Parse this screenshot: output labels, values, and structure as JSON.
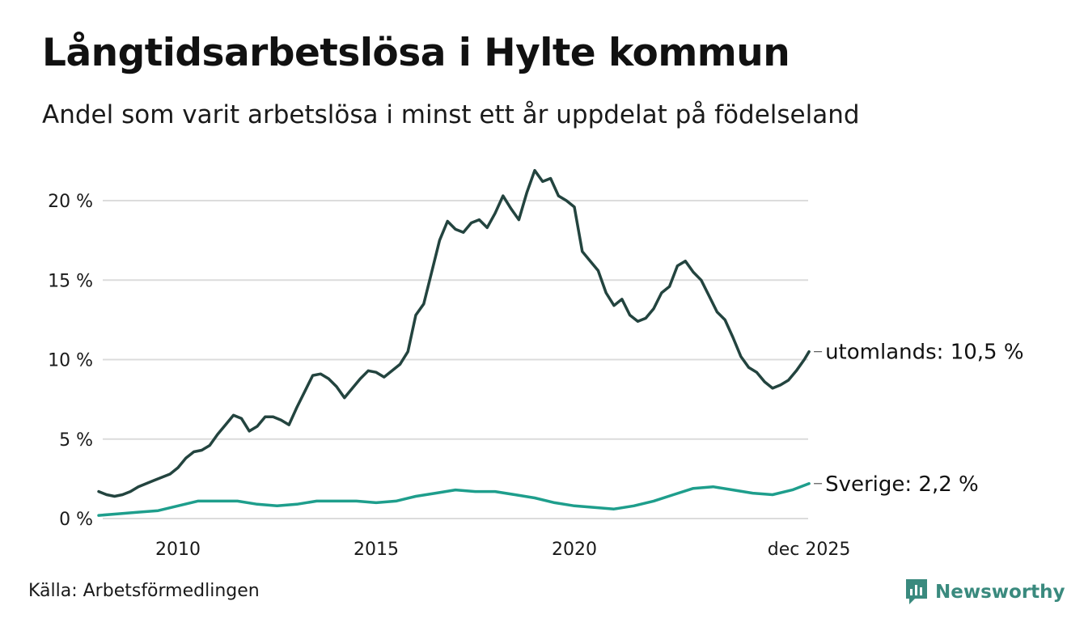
{
  "header": {
    "title": "Långtidsarbetslösa i Hylte kommun",
    "subtitle": "Andel som varit arbetslösa i minst ett år uppdelat på födelseland"
  },
  "footer": {
    "source": "Källa: Arbetsförmedlingen",
    "brand": "Newsworthy",
    "brand_color": "#3a8a7e"
  },
  "chart_data": {
    "type": "line",
    "title": "Långtidsarbetslösa i Hylte kommun",
    "subtitle": "Andel som varit arbetslösa i minst ett år uppdelat på födelseland",
    "xlabel": "",
    "ylabel": "",
    "xlim": [
      2008.0,
      2025.92
    ],
    "ylim": [
      0,
      22
    ],
    "grid": true,
    "y_ticks": [
      {
        "value": 0,
        "label": "0 %"
      },
      {
        "value": 5,
        "label": "5 %"
      },
      {
        "value": 10,
        "label": "10 %"
      },
      {
        "value": 15,
        "label": "15 %"
      },
      {
        "value": 20,
        "label": "20 %"
      }
    ],
    "x_ticks": [
      {
        "value": 2010,
        "label": "2010"
      },
      {
        "value": 2015,
        "label": "2015"
      },
      {
        "value": 2020,
        "label": "2020"
      },
      {
        "value": 2025.92,
        "label": "dec 2025"
      }
    ],
    "series": [
      {
        "name": "utomlands",
        "end_label": "utomlands: 10,5 %",
        "color": "#23443f",
        "points": [
          [
            2008.0,
            1.7
          ],
          [
            2008.2,
            1.5
          ],
          [
            2008.4,
            1.4
          ],
          [
            2008.6,
            1.5
          ],
          [
            2008.8,
            1.7
          ],
          [
            2009.0,
            2.0
          ],
          [
            2009.2,
            2.2
          ],
          [
            2009.4,
            2.4
          ],
          [
            2009.6,
            2.6
          ],
          [
            2009.8,
            2.8
          ],
          [
            2010.0,
            3.2
          ],
          [
            2010.2,
            3.8
          ],
          [
            2010.4,
            4.2
          ],
          [
            2010.6,
            4.3
          ],
          [
            2010.8,
            4.6
          ],
          [
            2011.0,
            5.3
          ],
          [
            2011.2,
            5.9
          ],
          [
            2011.4,
            6.5
          ],
          [
            2011.6,
            6.3
          ],
          [
            2011.8,
            5.5
          ],
          [
            2012.0,
            5.8
          ],
          [
            2012.2,
            6.4
          ],
          [
            2012.4,
            6.4
          ],
          [
            2012.6,
            6.2
          ],
          [
            2012.8,
            5.9
          ],
          [
            2013.0,
            7.0
          ],
          [
            2013.2,
            8.0
          ],
          [
            2013.4,
            9.0
          ],
          [
            2013.6,
            9.1
          ],
          [
            2013.8,
            8.8
          ],
          [
            2014.0,
            8.3
          ],
          [
            2014.2,
            7.6
          ],
          [
            2014.4,
            8.2
          ],
          [
            2014.6,
            8.8
          ],
          [
            2014.8,
            9.3
          ],
          [
            2015.0,
            9.2
          ],
          [
            2015.2,
            8.9
          ],
          [
            2015.4,
            9.3
          ],
          [
            2015.6,
            9.7
          ],
          [
            2015.8,
            10.5
          ],
          [
            2016.0,
            12.8
          ],
          [
            2016.2,
            13.5
          ],
          [
            2016.4,
            15.5
          ],
          [
            2016.6,
            17.5
          ],
          [
            2016.8,
            18.7
          ],
          [
            2017.0,
            18.2
          ],
          [
            2017.2,
            18.0
          ],
          [
            2017.4,
            18.6
          ],
          [
            2017.6,
            18.8
          ],
          [
            2017.8,
            18.3
          ],
          [
            2018.0,
            19.2
          ],
          [
            2018.2,
            20.3
          ],
          [
            2018.4,
            19.5
          ],
          [
            2018.6,
            18.8
          ],
          [
            2018.8,
            20.5
          ],
          [
            2019.0,
            21.9
          ],
          [
            2019.2,
            21.2
          ],
          [
            2019.4,
            21.4
          ],
          [
            2019.6,
            20.3
          ],
          [
            2019.8,
            20.0
          ],
          [
            2020.0,
            19.6
          ],
          [
            2020.2,
            16.8
          ],
          [
            2020.4,
            16.2
          ],
          [
            2020.6,
            15.6
          ],
          [
            2020.8,
            14.2
          ],
          [
            2021.0,
            13.4
          ],
          [
            2021.2,
            13.8
          ],
          [
            2021.4,
            12.8
          ],
          [
            2021.6,
            12.4
          ],
          [
            2021.8,
            12.6
          ],
          [
            2022.0,
            13.2
          ],
          [
            2022.2,
            14.2
          ],
          [
            2022.4,
            14.6
          ],
          [
            2022.6,
            15.9
          ],
          [
            2022.8,
            16.2
          ],
          [
            2023.0,
            15.5
          ],
          [
            2023.2,
            15.0
          ],
          [
            2023.4,
            14.0
          ],
          [
            2023.6,
            13.0
          ],
          [
            2023.8,
            12.5
          ],
          [
            2024.0,
            11.4
          ],
          [
            2024.2,
            10.2
          ],
          [
            2024.4,
            9.5
          ],
          [
            2024.6,
            9.2
          ],
          [
            2024.8,
            8.6
          ],
          [
            2025.0,
            8.2
          ],
          [
            2025.2,
            8.4
          ],
          [
            2025.4,
            8.7
          ],
          [
            2025.6,
            9.3
          ],
          [
            2025.8,
            10.0
          ],
          [
            2025.92,
            10.5
          ]
        ]
      },
      {
        "name": "Sverige",
        "end_label": "Sverige:  2,2 %",
        "color": "#1e9e8c",
        "points": [
          [
            2008.0,
            0.2
          ],
          [
            2008.5,
            0.3
          ],
          [
            2009.0,
            0.4
          ],
          [
            2009.5,
            0.5
          ],
          [
            2010.0,
            0.8
          ],
          [
            2010.5,
            1.1
          ],
          [
            2011.0,
            1.1
          ],
          [
            2011.5,
            1.1
          ],
          [
            2012.0,
            0.9
          ],
          [
            2012.5,
            0.8
          ],
          [
            2013.0,
            0.9
          ],
          [
            2013.5,
            1.1
          ],
          [
            2014.0,
            1.1
          ],
          [
            2014.5,
            1.1
          ],
          [
            2015.0,
            1.0
          ],
          [
            2015.5,
            1.1
          ],
          [
            2016.0,
            1.4
          ],
          [
            2016.5,
            1.6
          ],
          [
            2017.0,
            1.8
          ],
          [
            2017.5,
            1.7
          ],
          [
            2018.0,
            1.7
          ],
          [
            2018.5,
            1.5
          ],
          [
            2019.0,
            1.3
          ],
          [
            2019.5,
            1.0
          ],
          [
            2020.0,
            0.8
          ],
          [
            2020.5,
            0.7
          ],
          [
            2021.0,
            0.6
          ],
          [
            2021.5,
            0.8
          ],
          [
            2022.0,
            1.1
          ],
          [
            2022.5,
            1.5
          ],
          [
            2023.0,
            1.9
          ],
          [
            2023.5,
            2.0
          ],
          [
            2024.0,
            1.8
          ],
          [
            2024.5,
            1.6
          ],
          [
            2025.0,
            1.5
          ],
          [
            2025.5,
            1.8
          ],
          [
            2025.92,
            2.2
          ]
        ]
      }
    ]
  }
}
